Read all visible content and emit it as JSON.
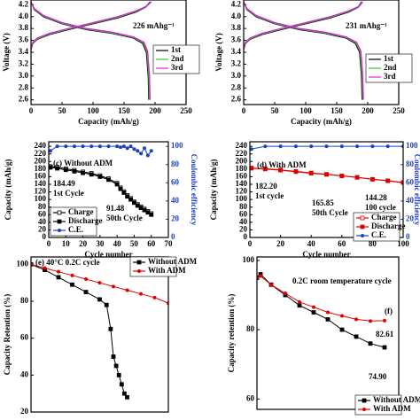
{
  "chart_data": [
    {
      "type": "line",
      "xlabel": "Capacity (mAh/g)",
      "ylabel": "Voltage (V)",
      "xlim": [
        0,
        250
      ],
      "ylim": [
        2.52,
        4.28
      ],
      "xticks": [
        0,
        50,
        100,
        150,
        200,
        250
      ],
      "yticks": [
        2.6,
        2.8,
        {
          "value": 3,
          "label": "3.0"
        },
        3.2,
        3.4,
        3.6,
        3.8,
        {
          "value": 4,
          "label": "4.0"
        },
        4.2
      ],
      "legend": "right",
      "annotations": [
        "226 mAhg⁻¹"
      ],
      "series": [
        {
          "name": "1st",
          "color": "#000000",
          "x": [
            0,
            3,
            10,
            30,
            60,
            100,
            140,
            170,
            185,
            192,
            null,
            0,
            5,
            20,
            50,
            90,
            130,
            165,
            180,
            186,
            189,
            190
          ],
          "values": [
            3.45,
            3.55,
            3.62,
            3.7,
            3.78,
            3.88,
            3.98,
            4.08,
            4.16,
            4.25,
            null,
            4.25,
            4.12,
            4.0,
            3.88,
            3.78,
            3.72,
            3.64,
            3.55,
            3.4,
            3.0,
            2.6
          ]
        },
        {
          "name": "2nd",
          "color": "#3cbf3c",
          "x": [
            0,
            3,
            10,
            30,
            60,
            100,
            140,
            170,
            186,
            193,
            null,
            0,
            5,
            20,
            50,
            90,
            130,
            165,
            181,
            187,
            190,
            191
          ],
          "values": [
            3.47,
            3.56,
            3.63,
            3.71,
            3.79,
            3.89,
            3.99,
            4.09,
            4.17,
            4.25,
            null,
            4.25,
            4.13,
            4.01,
            3.89,
            3.79,
            3.73,
            3.65,
            3.56,
            3.41,
            3.0,
            2.6
          ]
        },
        {
          "name": "3rd",
          "color": "#e020d8",
          "x": [
            0,
            3,
            10,
            30,
            60,
            100,
            140,
            170,
            187,
            194,
            null,
            0,
            5,
            20,
            50,
            90,
            130,
            165,
            182,
            188,
            191,
            192
          ],
          "values": [
            3.48,
            3.57,
            3.64,
            3.72,
            3.8,
            3.9,
            4.0,
            4.1,
            4.18,
            4.25,
            null,
            4.25,
            4.14,
            4.02,
            3.9,
            3.8,
            3.74,
            3.66,
            3.57,
            3.42,
            3.0,
            2.6
          ]
        }
      ]
    },
    {
      "type": "line",
      "xlabel": "Capacity (mAh/g)",
      "ylabel": "Voltage (V)",
      "xlim": [
        0,
        250
      ],
      "ylim": [
        2.52,
        4.28
      ],
      "xticks": [
        0,
        50,
        100,
        150,
        200,
        250
      ],
      "yticks": [
        2.6,
        2.8,
        {
          "value": 3,
          "label": "3.0"
        },
        3.2,
        3.4,
        3.6,
        3.8,
        {
          "value": 4,
          "label": "4.0"
        },
        4.2
      ],
      "legend": "right",
      "annotations": [
        "231 mAhg⁻¹"
      ],
      "series": [
        {
          "name": "1st",
          "color": "#000000",
          "x": [
            0,
            3,
            10,
            30,
            60,
            100,
            140,
            170,
            185,
            190,
            null,
            0,
            5,
            20,
            50,
            90,
            130,
            165,
            180,
            187,
            190,
            191
          ],
          "values": [
            3.45,
            3.55,
            3.62,
            3.7,
            3.78,
            3.88,
            3.98,
            4.08,
            4.16,
            4.25,
            null,
            4.25,
            4.12,
            4.0,
            3.88,
            3.78,
            3.72,
            3.64,
            3.55,
            3.4,
            3.0,
            2.6
          ]
        },
        {
          "name": "2nd",
          "color": "#3cbf3c",
          "x": [
            0,
            3,
            10,
            30,
            60,
            100,
            140,
            170,
            186,
            191,
            null,
            0,
            5,
            20,
            50,
            90,
            130,
            165,
            181,
            188,
            191,
            192
          ],
          "values": [
            3.47,
            3.56,
            3.63,
            3.71,
            3.79,
            3.89,
            3.99,
            4.09,
            4.17,
            4.25,
            null,
            4.25,
            4.13,
            4.01,
            3.89,
            3.79,
            3.73,
            3.65,
            3.56,
            3.41,
            3.0,
            2.6
          ]
        },
        {
          "name": "3rd",
          "color": "#e020d8",
          "x": [
            0,
            3,
            10,
            30,
            60,
            100,
            140,
            170,
            187,
            192,
            null,
            0,
            5,
            20,
            50,
            90,
            130,
            165,
            182,
            189,
            192,
            193
          ],
          "values": [
            3.48,
            3.57,
            3.64,
            3.72,
            3.8,
            3.9,
            4.0,
            4.1,
            4.18,
            4.25,
            null,
            4.25,
            4.14,
            4.02,
            3.9,
            3.8,
            3.74,
            3.66,
            3.57,
            3.42,
            3.0,
            2.6
          ]
        }
      ]
    },
    {
      "type": "line",
      "title": "(c) Without ADM",
      "xlabel": "Cycle number",
      "ylabel": "Capacity (mAh/g)",
      "y2label": "Coulombic efficiency",
      "xlim": [
        0,
        70
      ],
      "ylim": [
        0,
        252
      ],
      "y2lim": [
        0,
        105
      ],
      "xticks": [
        0,
        10,
        20,
        30,
        40,
        50,
        60,
        70
      ],
      "yticks": [
        0,
        20,
        40,
        60,
        80,
        100,
        120,
        140,
        160,
        180,
        200,
        220,
        240
      ],
      "y2ticks": [
        0,
        20,
        40,
        60,
        80,
        100
      ],
      "legend": "lower left",
      "annotations": [
        "184.49",
        "1st Cycle",
        "91.48",
        "50th Cycle"
      ],
      "series": [
        {
          "name": "Charge",
          "color": "#000000",
          "marker": "open-square",
          "x": [
            1,
            5,
            10,
            15,
            20,
            25,
            30,
            35,
            40,
            42,
            44,
            46,
            48,
            50,
            52,
            54,
            56,
            58,
            60
          ],
          "values": [
            187,
            185,
            181,
            177,
            173,
            169,
            163,
            155,
            143,
            131,
            121,
            111,
            103,
            94,
            87,
            81,
            75,
            69,
            63
          ]
        },
        {
          "name": "Discharge",
          "color": "#000000",
          "marker": "square",
          "x": [
            1,
            5,
            10,
            15,
            20,
            25,
            30,
            35,
            40,
            42,
            44,
            46,
            48,
            50,
            52,
            54,
            56,
            58,
            60
          ],
          "values": [
            184.49,
            182,
            178,
            174,
            170,
            166,
            160,
            152,
            140,
            128,
            118,
            108,
            100,
            91.48,
            84,
            78,
            72,
            66,
            60
          ]
        },
        {
          "name": "C.E.",
          "color": "#1d3fc4",
          "marker": "circle",
          "axis": "y2",
          "x": [
            1,
            5,
            10,
            15,
            20,
            25,
            30,
            35,
            40,
            42,
            44,
            46,
            48,
            50,
            52,
            54,
            56,
            58,
            60
          ],
          "values": [
            95,
            100,
            100,
            100,
            100,
            100,
            100,
            100,
            100,
            99,
            100,
            98,
            100,
            97,
            95,
            92,
            98,
            90,
            95
          ]
        }
      ]
    },
    {
      "type": "line",
      "title": "(d) With ADM",
      "xlabel": "Cycle number",
      "ylabel": "Capacity (mAh/g)",
      "y2label": "Coulombic efficiency",
      "xlim": [
        0,
        100
      ],
      "ylim": [
        0,
        252
      ],
      "y2lim": [
        0,
        105
      ],
      "xticks": [
        0,
        20,
        40,
        60,
        80,
        100
      ],
      "yticks": [
        0,
        20,
        40,
        60,
        80,
        100,
        120,
        140,
        160,
        180,
        200,
        220,
        240
      ],
      "y2ticks": [
        0,
        20,
        40,
        60,
        80,
        100
      ],
      "legend": "lower right",
      "annotations": [
        "182.20",
        "1st cycle",
        "165.85",
        "50th Cycle",
        "144.28",
        "100 cycle"
      ],
      "series": [
        {
          "name": "Charge",
          "color": "#e00000",
          "marker": "open-square",
          "x": [
            1,
            10,
            20,
            30,
            40,
            50,
            60,
            70,
            80,
            90,
            100
          ],
          "values": [
            183,
            181,
            178,
            174,
            170,
            166.5,
            162.5,
            158.5,
            153.5,
            149.5,
            145
          ]
        },
        {
          "name": "Discharge",
          "color": "#e00000",
          "marker": "square",
          "x": [
            1,
            10,
            20,
            30,
            40,
            50,
            60,
            70,
            80,
            90,
            100
          ],
          "values": [
            182.2,
            180,
            177,
            173,
            169,
            165.85,
            162,
            158,
            153,
            149,
            144.28
          ]
        },
        {
          "name": "C.E.",
          "color": "#1d3fc4",
          "marker": "circle",
          "axis": "y2",
          "x": [
            1,
            10,
            20,
            30,
            40,
            50,
            60,
            70,
            80,
            90,
            100
          ],
          "values": [
            97,
            100,
            100,
            100,
            100,
            100,
            100,
            100,
            100,
            100,
            100
          ]
        }
      ]
    },
    {
      "type": "line",
      "title": "(e) 40°C 0.2C cycle",
      "ylabel": "Capacity Retention (%)",
      "xlim": [
        0,
        100
      ],
      "ylim": [
        20,
        104
      ],
      "yticks": [
        20,
        40,
        60,
        80,
        100
      ],
      "legend": "upper right",
      "series": [
        {
          "name": "Without ADM",
          "color": "#000000",
          "marker": "square",
          "x": [
            0,
            10,
            20,
            30,
            40,
            50,
            55,
            58,
            60,
            62,
            64,
            66,
            68,
            70
          ],
          "values": [
            100,
            97,
            93,
            89,
            85,
            81,
            78,
            65,
            50,
            45,
            40,
            35,
            30,
            28
          ]
        },
        {
          "name": "With ADM",
          "color": "#e00000",
          "marker": "circle",
          "x": [
            0,
            10,
            20,
            30,
            40,
            50,
            60,
            70,
            80,
            90,
            100
          ],
          "values": [
            100,
            98,
            96,
            94,
            92,
            90,
            88,
            86,
            84,
            82,
            79
          ]
        }
      ]
    },
    {
      "type": "line",
      "title": "0.2C room temperature cycle",
      "ylabel": "Capacity retention (%)",
      "xlim": [
        0,
        200
      ],
      "ylim": [
        57,
        101
      ],
      "yticks": [
        60,
        80,
        100
      ],
      "legend": "lower right",
      "annotations": [
        "(f)",
        "82.61",
        "74.90"
      ],
      "series": [
        {
          "name": "Without ADM",
          "color": "#000000",
          "marker": "square",
          "x": [
            0,
            5,
            20,
            40,
            60,
            80,
            100,
            120,
            140,
            160,
            180
          ],
          "values": [
            95,
            96,
            93,
            90,
            87,
            85,
            83,
            80,
            78,
            76,
            74.9
          ]
        },
        {
          "name": "With ADM",
          "color": "#e00000",
          "marker": "circle",
          "x": [
            0,
            5,
            20,
            40,
            60,
            80,
            100,
            120,
            140,
            160,
            180
          ],
          "values": [
            95,
            95.5,
            93,
            90.5,
            88,
            86.5,
            85,
            84,
            83,
            82.5,
            82.61
          ]
        }
      ]
    }
  ]
}
